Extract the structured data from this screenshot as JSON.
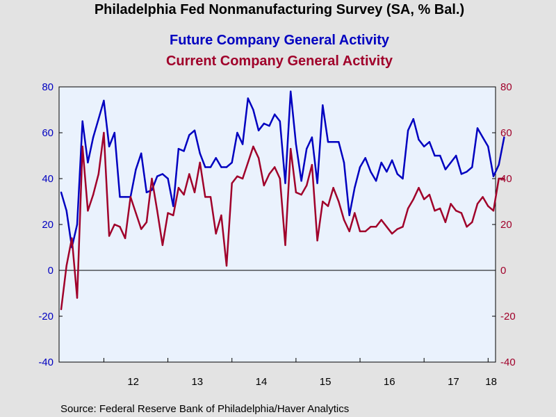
{
  "chart_data": {
    "type": "line",
    "title": "Philadelphia Fed Nonmanufacturing Survey (SA, % Bal.)",
    "source": "Source:  Federal Reserve Bank of Philadelphia/Haver Analytics",
    "x_start": "2011-05",
    "x_end": "2018-02",
    "xticks": [
      "12",
      "13",
      "14",
      "15",
      "16",
      "17",
      "18"
    ],
    "y_left": {
      "min": -40,
      "max": 80,
      "ticks": [
        -40,
        -20,
        0,
        20,
        40,
        60,
        80
      ]
    },
    "y_right": {
      "min": -40,
      "max": 80,
      "ticks": [
        -40,
        -20,
        0,
        20,
        40,
        60,
        80
      ]
    },
    "zero_line": true,
    "series": [
      {
        "name": "Future Company General Activity",
        "color": "#0000c0",
        "values": [
          34,
          26,
          10,
          20,
          65,
          47,
          58,
          66,
          74,
          54,
          60,
          32,
          32,
          32,
          44,
          51,
          34,
          35,
          41,
          42,
          40,
          28,
          53,
          52,
          59,
          61,
          51,
          45,
          45,
          49,
          45,
          45,
          47,
          60,
          55,
          75,
          70,
          61,
          64,
          63,
          68,
          65,
          38,
          78,
          55,
          39,
          53,
          58,
          38,
          72,
          56,
          56,
          56,
          47,
          24,
          36,
          45,
          49,
          43,
          39,
          47,
          43,
          48,
          42,
          40,
          61,
          66,
          57,
          54,
          56,
          50,
          50,
          44,
          47,
          50,
          42,
          43,
          45,
          62,
          58,
          54,
          41,
          46,
          58
        ]
      },
      {
        "name": "Current Company General Activity",
        "color": "#a0002a",
        "values": [
          -17,
          2,
          14,
          -12,
          54,
          26,
          33,
          42,
          60,
          15,
          20,
          19,
          14,
          32,
          25,
          18,
          21,
          40,
          26,
          11,
          25,
          24,
          36,
          33,
          42,
          34,
          47,
          32,
          32,
          16,
          24,
          2,
          38,
          41,
          40,
          47,
          54,
          49,
          37,
          42,
          45,
          40,
          11,
          53,
          34,
          33,
          37,
          46,
          13,
          30,
          28,
          36,
          30,
          22,
          17,
          25,
          17,
          17,
          19,
          19,
          22,
          19,
          16,
          18,
          19,
          27,
          31,
          36,
          31,
          33,
          26,
          27,
          21,
          29,
          26,
          25,
          19,
          21,
          29,
          32,
          28,
          26,
          40,
          40
        ]
      }
    ]
  }
}
